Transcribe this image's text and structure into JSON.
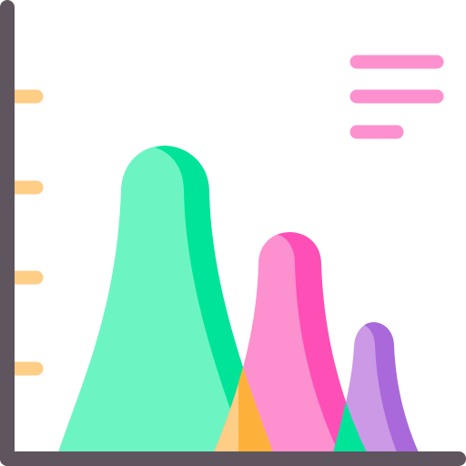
{
  "icon": {
    "name": "area-chart-icon",
    "description_free": true
  },
  "palette": {
    "axis": "#5f555e",
    "tick": "#fecd86",
    "legend": "#fd90cf",
    "peak_large_light": "#6cf5c2",
    "peak_large_dark": "#00e499",
    "peak_mid_light": "#fd90cf",
    "peak_mid_dark": "#fe4fb7",
    "peak_small_light": "#cb99e6",
    "peak_small_dark": "#a969da",
    "overlap_green_pink_light": "#fecd86",
    "overlap_green_pink_dark": "#feb13a",
    "overlap_pink_purple": "#00e499"
  },
  "chart_data": {
    "type": "area",
    "series": [
      {
        "values": [
          0,
          1.0,
          0
        ]
      },
      {
        "values": [
          0,
          0.72,
          0
        ]
      },
      {
        "values": [
          0,
          0.42,
          0
        ]
      }
    ],
    "ticks": 4,
    "legend_lines": 3,
    "grid": false,
    "legend": "top-right"
  }
}
